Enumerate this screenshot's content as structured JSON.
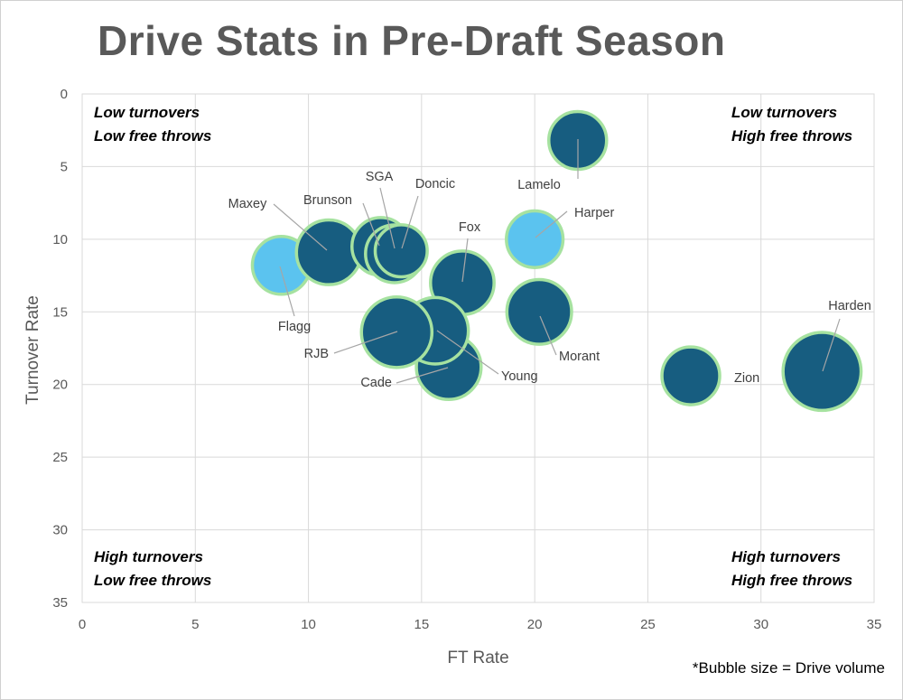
{
  "header": {
    "title": "Drive Stats in Pre-Draft Season",
    "footnote": "*Bubble size = Drive volume"
  },
  "colors": {
    "dark_bubble": "#175d80",
    "light_bubble": "#5bc3ef",
    "bubble_outline": "#a6e2a0",
    "grid": "#d9d9d9",
    "axis_text": "#595959"
  },
  "chart_data": {
    "type": "scatter",
    "subtype": "bubble",
    "title": "Drive Stats in Pre-Draft Season",
    "xlabel": "FT Rate",
    "ylabel": "Turnover Rate",
    "xlim": [
      0,
      35
    ],
    "ylim": [
      0,
      35
    ],
    "y_reversed": true,
    "x_ticks": [
      0,
      5,
      10,
      15,
      20,
      25,
      30,
      35
    ],
    "y_ticks": [
      0,
      5,
      10,
      15,
      20,
      25,
      30,
      35
    ],
    "grid": true,
    "legend": "none",
    "quadrant_labels": [
      {
        "position": "top-left",
        "lines": [
          "Low turnovers",
          "Low free throws"
        ]
      },
      {
        "position": "top-right",
        "lines": [
          "Low turnovers",
          "High free throws"
        ]
      },
      {
        "position": "bottom-left",
        "lines": [
          "High turnovers",
          "Low free throws"
        ]
      },
      {
        "position": "bottom-right",
        "lines": [
          "High turnovers",
          "High free throws"
        ]
      }
    ],
    "points": [
      {
        "name": "Lamelo",
        "x": 21.9,
        "y": 3.2,
        "size": 1.0,
        "color": "dark"
      },
      {
        "name": "Harper",
        "x": 20.0,
        "y": 10.0,
        "size": 0.98,
        "color": "light"
      },
      {
        "name": "Flagg",
        "x": 8.8,
        "y": 11.8,
        "size": 1.0,
        "color": "light"
      },
      {
        "name": "Maxey",
        "x": 10.9,
        "y": 10.9,
        "size": 1.12,
        "color": "dark"
      },
      {
        "name": "Brunson",
        "x": 13.2,
        "y": 10.5,
        "size": 1.0,
        "color": "dark"
      },
      {
        "name": "SGA",
        "x": 13.8,
        "y": 11.0,
        "size": 1.0,
        "color": "dark"
      },
      {
        "name": "Doncic",
        "x": 14.1,
        "y": 10.8,
        "size": 0.9,
        "color": "dark"
      },
      {
        "name": "Fox",
        "x": 16.8,
        "y": 13.0,
        "size": 1.1,
        "color": "dark"
      },
      {
        "name": "Morant",
        "x": 20.2,
        "y": 15.0,
        "size": 1.12,
        "color": "dark"
      },
      {
        "name": "Cade",
        "x": 16.2,
        "y": 18.8,
        "size": 1.12,
        "color": "dark"
      },
      {
        "name": "Young",
        "x": 15.6,
        "y": 16.3,
        "size": 1.15,
        "color": "dark"
      },
      {
        "name": "RJB",
        "x": 13.9,
        "y": 16.4,
        "size": 1.22,
        "color": "dark"
      },
      {
        "name": "Zion",
        "x": 26.9,
        "y": 19.4,
        "size": 1.0,
        "color": "dark"
      },
      {
        "name": "Harden",
        "x": 32.7,
        "y": 19.1,
        "size": 1.35,
        "color": "dark"
      }
    ]
  }
}
